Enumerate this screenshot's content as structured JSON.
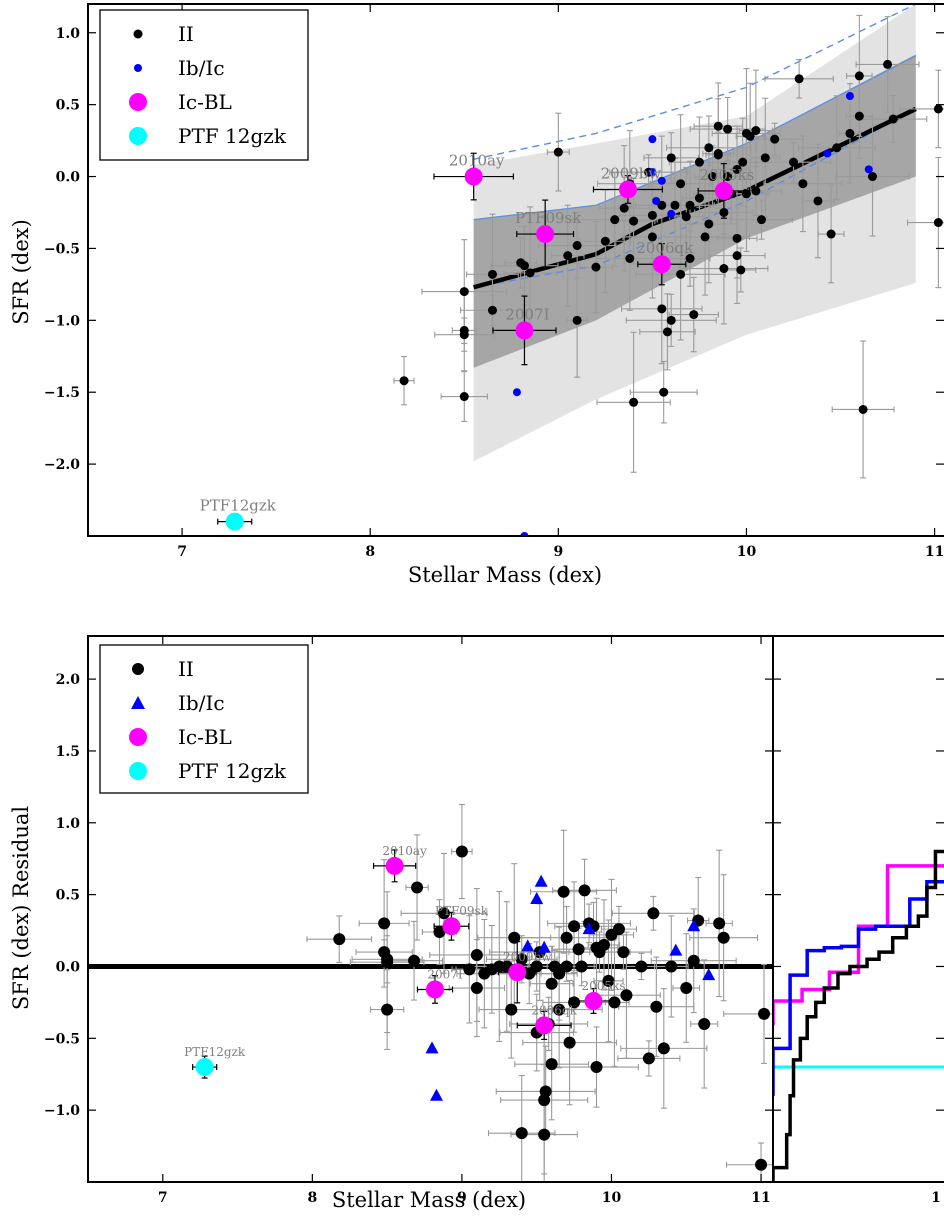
{
  "chart_data": [
    {
      "type": "scatter",
      "xlabel": "Stellar Mass (dex)",
      "ylabel": "SFR (dex)",
      "xlim": [
        6.5,
        11.05
      ],
      "ylim": [
        -2.5,
        1.2
      ],
      "xticks": [
        "7",
        "8",
        "9",
        "10",
        "11"
      ],
      "yticks": [
        "1.0",
        "0.5",
        "0.0",
        "−0.5",
        "−1.0",
        "−1.5",
        "−2.0"
      ],
      "legend": {
        "placement": "top-left",
        "entries": [
          "II",
          "Ib/Ic",
          "Ic-BL",
          "PTF 12gzk"
        ]
      },
      "colors": {
        "II": "#000000",
        "Ib/Ic": "#0000ff",
        "Ic-BL": "#ff00ff",
        "PTF 12gzk": "#00ffff"
      },
      "bands": {
        "outer": {
          "x": [
            8.55,
            9.2,
            10.0,
            10.9
          ],
          "lower": [
            -1.98,
            -1.55,
            -1.1,
            -0.74
          ],
          "upper": [
            0.08,
            0.23,
            0.42,
            1.2
          ]
        },
        "inner": {
          "x": [
            8.55,
            9.2,
            10.0,
            10.9
          ],
          "lower": [
            -1.33,
            -1.0,
            -0.43,
            0.0
          ],
          "upper": [
            -0.3,
            -0.2,
            0.23,
            0.85
          ]
        }
      },
      "fit_line": {
        "x": [
          8.55,
          9.2,
          9.5,
          10.0,
          10.9
        ],
        "y": [
          -0.77,
          -0.54,
          -0.33,
          -0.1,
          0.47
        ]
      },
      "blue_line": {
        "x": [
          8.55,
          9.2,
          10.0,
          10.9
        ],
        "y": [
          -0.3,
          -0.2,
          0.23,
          0.84
        ]
      },
      "blue_dashed_upper": {
        "x": [
          8.55,
          9.2,
          10.0,
          10.9
        ],
        "y": [
          0.12,
          0.3,
          0.62,
          1.2
        ]
      },
      "blue_dashed_lower": {
        "x": [
          8.55,
          9.2,
          10.0,
          10.9
        ],
        "y": [
          -0.77,
          -0.62,
          -0.17,
          0.47
        ]
      },
      "series_II": [
        [
          8.18,
          -1.42
        ],
        [
          8.5,
          -0.8
        ],
        [
          8.5,
          -1.07
        ],
        [
          8.5,
          -1.1
        ],
        [
          8.5,
          -1.53
        ],
        [
          8.65,
          -0.68
        ],
        [
          8.65,
          -0.93
        ],
        [
          8.8,
          -0.6
        ],
        [
          8.82,
          -0.62
        ],
        [
          8.85,
          -0.67
        ],
        [
          9.0,
          0.17
        ],
        [
          9.05,
          -0.55
        ],
        [
          9.1,
          -0.48
        ],
        [
          9.1,
          -1.0
        ],
        [
          9.2,
          -0.63
        ],
        [
          9.25,
          -0.45
        ],
        [
          9.3,
          -0.3
        ],
        [
          9.35,
          -0.22
        ],
        [
          9.38,
          -0.57
        ],
        [
          9.4,
          -0.31
        ],
        [
          9.4,
          -1.57
        ],
        [
          9.5,
          -0.42
        ],
        [
          9.5,
          -0.27
        ],
        [
          9.55,
          -0.2
        ],
        [
          9.55,
          -0.92
        ],
        [
          9.56,
          -1.5
        ],
        [
          9.58,
          -1.08
        ],
        [
          9.6,
          -1.0
        ],
        [
          9.62,
          -0.2
        ],
        [
          9.65,
          -0.05
        ],
        [
          9.65,
          -0.68
        ],
        [
          9.7,
          -0.2
        ],
        [
          9.7,
          -0.57
        ],
        [
          9.72,
          -0.96
        ],
        [
          9.75,
          -0.15
        ],
        [
          9.75,
          0.1
        ],
        [
          9.78,
          -0.42
        ],
        [
          9.8,
          0.2
        ],
        [
          9.8,
          -0.33
        ],
        [
          9.82,
          0.0
        ],
        [
          9.85,
          0.35
        ],
        [
          9.85,
          0.15
        ],
        [
          9.88,
          -0.25
        ],
        [
          9.9,
          0.33
        ],
        [
          9.9,
          0.0
        ],
        [
          9.92,
          -0.12
        ],
        [
          9.95,
          -0.43
        ],
        [
          9.95,
          -0.55
        ],
        [
          9.97,
          -0.65
        ],
        [
          9.98,
          0.1
        ],
        [
          10.0,
          -0.12
        ],
        [
          10.02,
          0.28
        ],
        [
          10.05,
          0.32
        ],
        [
          10.05,
          -0.1
        ],
        [
          10.08,
          -0.3
        ],
        [
          10.1,
          0.13
        ],
        [
          10.15,
          0.26
        ],
        [
          10.25,
          0.1
        ],
        [
          10.28,
          0.68
        ],
        [
          10.3,
          -0.05
        ],
        [
          10.38,
          -0.17
        ],
        [
          10.45,
          -0.4
        ],
        [
          10.48,
          0.2
        ],
        [
          10.55,
          0.3
        ],
        [
          10.6,
          0.42
        ],
        [
          10.6,
          0.7
        ],
        [
          10.62,
          -1.62
        ],
        [
          10.67,
          0.0
        ],
        [
          10.75,
          0.78
        ],
        [
          10.78,
          0.4
        ],
        [
          9.38,
          -0.05
        ],
        [
          9.6,
          0.13
        ],
        [
          9.48,
          0.03
        ],
        [
          9.88,
          -0.64
        ],
        [
          11.02,
          0.47
        ],
        [
          11.02,
          -0.32
        ],
        [
          9.85,
          0.16
        ],
        [
          10.0,
          0.3
        ],
        [
          9.68,
          -0.28
        ],
        [
          9.95,
          0.05
        ]
      ],
      "series_IbIc": [
        [
          9.5,
          0.26
        ],
        [
          9.5,
          0.03
        ],
        [
          9.52,
          -0.17
        ],
        [
          9.55,
          -0.03
        ],
        [
          9.6,
          -0.26
        ],
        [
          8.78,
          -1.5
        ],
        [
          10.43,
          0.16
        ],
        [
          10.55,
          0.56
        ],
        [
          10.65,
          0.05
        ],
        [
          8.82,
          -2.5
        ]
      ],
      "series_IcBL": [
        {
          "x": 8.55,
          "y": 0.0,
          "label": "2010ay"
        },
        {
          "x": 9.37,
          "y": -0.09,
          "label": "2009bw"
        },
        {
          "x": 9.88,
          "y": -0.1,
          "label": "2005ks"
        },
        {
          "x": 8.93,
          "y": -0.4,
          "label": "PTF09sk"
        },
        {
          "x": 9.55,
          "y": -0.61,
          "label": "2006qk"
        },
        {
          "x": 8.82,
          "y": -1.07,
          "label": "2007I"
        }
      ],
      "series_12gzk": [
        {
          "x": 7.28,
          "y": -2.4,
          "label": "PTF12gzk"
        }
      ]
    },
    {
      "type": "scatter",
      "xlabel": "Stellar Mass (dex)",
      "ylabel": "SFR (dex) Residual",
      "xlim": [
        6.5,
        11.08
      ],
      "ylim": [
        -1.5,
        2.3
      ],
      "xticks": [
        "7",
        "8",
        "9",
        "10",
        "11"
      ],
      "yticks": [
        "2.0",
        "1.5",
        "1.0",
        "0.5",
        "0.0",
        "−0.5",
        "−1.0"
      ],
      "right_tick": "1",
      "legend": {
        "placement": "top-left",
        "entries": [
          "II",
          "Ib/Ic",
          "Ic-BL",
          "PTF 12gzk"
        ]
      },
      "series_II": [
        [
          8.18,
          0.19
        ],
        [
          8.48,
          0.3
        ],
        [
          8.48,
          0.1
        ],
        [
          8.5,
          0.05
        ],
        [
          8.5,
          -0.3
        ],
        [
          8.5,
          0.03
        ],
        [
          8.68,
          0.04
        ],
        [
          8.7,
          0.55
        ],
        [
          8.85,
          0.24
        ],
        [
          8.88,
          0.37
        ],
        [
          9.0,
          0.8
        ],
        [
          9.05,
          -0.02
        ],
        [
          9.1,
          -0.15
        ],
        [
          9.1,
          0.08
        ],
        [
          9.15,
          -0.05
        ],
        [
          9.2,
          -0.02
        ],
        [
          9.25,
          0.0
        ],
        [
          9.3,
          0.0
        ],
        [
          9.33,
          -0.3
        ],
        [
          9.35,
          0.2
        ],
        [
          9.4,
          -1.16
        ],
        [
          9.45,
          -0.05
        ],
        [
          9.5,
          -0.46
        ],
        [
          9.5,
          0.0
        ],
        [
          9.52,
          0.1
        ],
        [
          9.55,
          -0.93
        ],
        [
          9.55,
          -1.17
        ],
        [
          9.56,
          -0.87
        ],
        [
          9.58,
          -0.4
        ],
        [
          9.6,
          -0.12
        ],
        [
          9.62,
          0.0
        ],
        [
          9.65,
          -0.05
        ],
        [
          9.68,
          0.52
        ],
        [
          9.7,
          0.2
        ],
        [
          9.72,
          -0.53
        ],
        [
          9.75,
          -0.25
        ],
        [
          9.75,
          0.28
        ],
        [
          9.78,
          0.12
        ],
        [
          9.8,
          0.0
        ],
        [
          9.82,
          0.53
        ],
        [
          9.85,
          0.3
        ],
        [
          9.88,
          0.28
        ],
        [
          9.9,
          -0.7
        ],
        [
          9.9,
          0.13
        ],
        [
          9.92,
          0.1
        ],
        [
          9.95,
          0.15
        ],
        [
          9.98,
          -0.1
        ],
        [
          10.0,
          0.22
        ],
        [
          10.02,
          -0.25
        ],
        [
          10.05,
          0.26
        ],
        [
          10.08,
          0.1
        ],
        [
          10.1,
          -0.2
        ],
        [
          10.2,
          0.0
        ],
        [
          10.25,
          -0.64
        ],
        [
          10.28,
          0.37
        ],
        [
          10.3,
          -0.28
        ],
        [
          10.35,
          -0.57
        ],
        [
          10.4,
          0.0
        ],
        [
          10.5,
          -0.15
        ],
        [
          10.55,
          0.04
        ],
        [
          10.58,
          0.32
        ],
        [
          10.62,
          -0.4
        ],
        [
          10.72,
          0.3
        ],
        [
          10.75,
          0.2
        ],
        [
          11.02,
          -0.33
        ],
        [
          11.0,
          -1.38
        ],
        [
          9.6,
          -0.68
        ],
        [
          9.4,
          0.05
        ],
        [
          9.7,
          0.0
        ],
        [
          9.65,
          -0.3
        ]
      ],
      "series_IbIc": [
        [
          8.8,
          -0.57
        ],
        [
          8.83,
          -0.9
        ],
        [
          9.44,
          0.14
        ],
        [
          9.5,
          0.47
        ],
        [
          9.53,
          0.59
        ],
        [
          9.55,
          0.13
        ],
        [
          9.85,
          0.26
        ],
        [
          10.43,
          0.11
        ],
        [
          10.55,
          0.28
        ],
        [
          10.65,
          -0.06
        ]
      ],
      "series_IcBL": [
        {
          "x": 8.55,
          "y": 0.7,
          "label": "2010ay"
        },
        {
          "x": 8.93,
          "y": 0.28,
          "label": "PTF09sk"
        },
        {
          "x": 9.37,
          "y": -0.04,
          "label": "2009bw"
        },
        {
          "x": 9.88,
          "y": -0.24,
          "label": "2005ks"
        },
        {
          "x": 9.55,
          "y": -0.41,
          "label": "2006qk"
        },
        {
          "x": 8.82,
          "y": -0.16,
          "label": "2007I"
        }
      ],
      "series_12gzk": [
        {
          "x": 7.28,
          "y": -0.7,
          "label": "PTF12gzk"
        }
      ],
      "cdf": {
        "type": "step",
        "xlim": [
          0,
          1
        ],
        "II": [
          [
            0.0,
            -1.5
          ],
          [
            0.08,
            -1.4
          ],
          [
            0.1,
            -1.17
          ],
          [
            0.12,
            -0.9
          ],
          [
            0.16,
            -0.65
          ],
          [
            0.2,
            -0.5
          ],
          [
            0.25,
            -0.35
          ],
          [
            0.3,
            -0.25
          ],
          [
            0.38,
            -0.15
          ],
          [
            0.45,
            -0.05
          ],
          [
            0.55,
            0.0
          ],
          [
            0.62,
            0.05
          ],
          [
            0.7,
            0.1
          ],
          [
            0.78,
            0.2
          ],
          [
            0.85,
            0.28
          ],
          [
            0.9,
            0.35
          ],
          [
            0.95,
            0.55
          ],
          [
            1.0,
            0.8
          ]
        ],
        "IbIc": [
          [
            0.0,
            -0.9
          ],
          [
            0.1,
            -0.57
          ],
          [
            0.2,
            -0.06
          ],
          [
            0.3,
            0.11
          ],
          [
            0.4,
            0.13
          ],
          [
            0.5,
            0.14
          ],
          [
            0.6,
            0.26
          ],
          [
            0.8,
            0.28
          ],
          [
            0.9,
            0.47
          ],
          [
            1.0,
            0.59
          ]
        ],
        "IcBL": [
          [
            0.0,
            -0.41
          ],
          [
            0.17,
            -0.24
          ],
          [
            0.33,
            -0.16
          ],
          [
            0.5,
            -0.04
          ],
          [
            0.67,
            0.28
          ],
          [
            0.83,
            0.7
          ]
        ],
        "PTF12gzk": [
          [
            0.0,
            -0.7
          ],
          [
            1.0,
            -0.7
          ]
        ]
      }
    }
  ]
}
